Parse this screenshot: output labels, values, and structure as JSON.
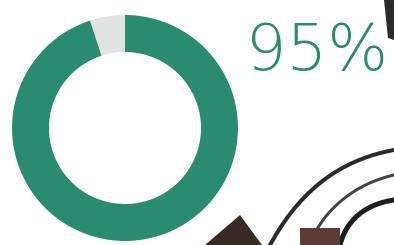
{
  "chart_data": {
    "type": "donut",
    "categories": [
      null,
      null
    ],
    "values": [
      95,
      5
    ],
    "value_labels": [
      "95%",
      null
    ],
    "colors": [
      "#2a8c6e",
      "#e1e3e2"
    ]
  }
}
